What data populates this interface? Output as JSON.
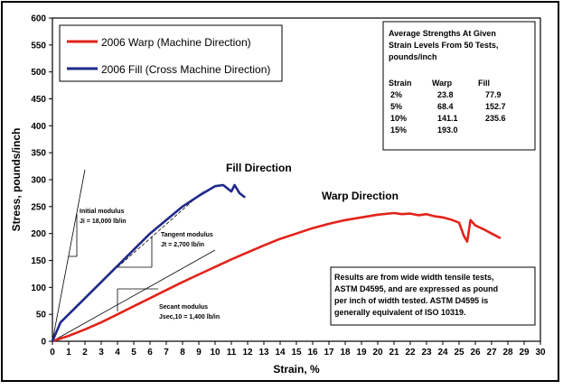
{
  "chart_data": {
    "type": "line",
    "xlabel": "Strain, %",
    "ylabel": "Stress, pounds/inch",
    "xlim": [
      0,
      30
    ],
    "ylim": [
      0,
      600
    ],
    "x_ticks": [
      0,
      1,
      2,
      3,
      4,
      5,
      6,
      7,
      8,
      9,
      10,
      11,
      12,
      13,
      14,
      15,
      16,
      17,
      18,
      19,
      20,
      21,
      22,
      23,
      24,
      25,
      26,
      27,
      28,
      29,
      30
    ],
    "y_ticks": [
      0,
      50,
      100,
      150,
      200,
      250,
      300,
      350,
      400,
      450,
      500,
      550,
      600
    ],
    "grid": false,
    "legend_position": "top-left",
    "series": [
      {
        "name": "2006 Warp (Machine Direction)",
        "color": "#e2231a",
        "x": [
          0,
          0.5,
          1,
          2,
          3,
          4,
          5,
          6,
          7,
          8,
          9,
          10,
          11,
          12,
          13,
          14,
          15,
          16,
          17,
          18,
          19,
          20,
          21,
          21.5,
          22,
          22.5,
          23,
          23.5,
          24,
          24.5,
          25,
          25.3,
          25.5,
          25.7,
          26,
          26.5,
          27,
          27.5
        ],
        "y": [
          0,
          5,
          10,
          22,
          35,
          50,
          65,
          80,
          95,
          110,
          124,
          138,
          152,
          165,
          178,
          190,
          200,
          210,
          218,
          225,
          230,
          235,
          238,
          236,
          237,
          234,
          236,
          232,
          230,
          226,
          220,
          195,
          185,
          225,
          215,
          208,
          200,
          192
        ]
      },
      {
        "name": "2006 Fill (Cross Machine Direction)",
        "color": "#1f2a8a",
        "x": [
          0,
          0.5,
          1,
          2,
          3,
          4,
          5,
          6,
          7,
          8,
          9,
          10,
          10.5,
          11,
          11.2,
          11.5,
          11.8
        ],
        "y": [
          0,
          35,
          50,
          80,
          110,
          140,
          170,
          200,
          225,
          250,
          270,
          288,
          290,
          278,
          290,
          275,
          268
        ]
      }
    ],
    "annotations": {
      "fill_direction": "Fill Direction",
      "warp_direction": "Warp Direction",
      "initial_modulus_title": "Initial modulus",
      "initial_modulus_value": "Ji = 18,000 lb/in",
      "tangent_modulus_title": "Tangent modulus",
      "tangent_modulus_value": "Jt = 2,700 lb/in",
      "secant_modulus_title": "Secant modulus",
      "secant_modulus_value": "Jsec,10 = 1,400 lb/in"
    },
    "strength_table": {
      "title_lines": [
        "Average Strengths At Given",
        "Strain Levels From 50 Tests,",
        "pounds/inch"
      ],
      "headers": [
        "Strain",
        "Warp",
        "Fill"
      ],
      "rows": [
        [
          "2%",
          "23.8",
          "77.9"
        ],
        [
          "5%",
          "68.4",
          "152.7"
        ],
        [
          "10%",
          "141.1",
          "235.6"
        ],
        [
          "15%",
          "193.0",
          ""
        ]
      ]
    },
    "results_note_lines": [
      "Results are from wide width tensile tests,",
      "ASTM D4595, and are expressed as pound",
      "per inch of width tested.  ASTM D4595 is",
      "generally equivalent of ISO 10319."
    ]
  }
}
